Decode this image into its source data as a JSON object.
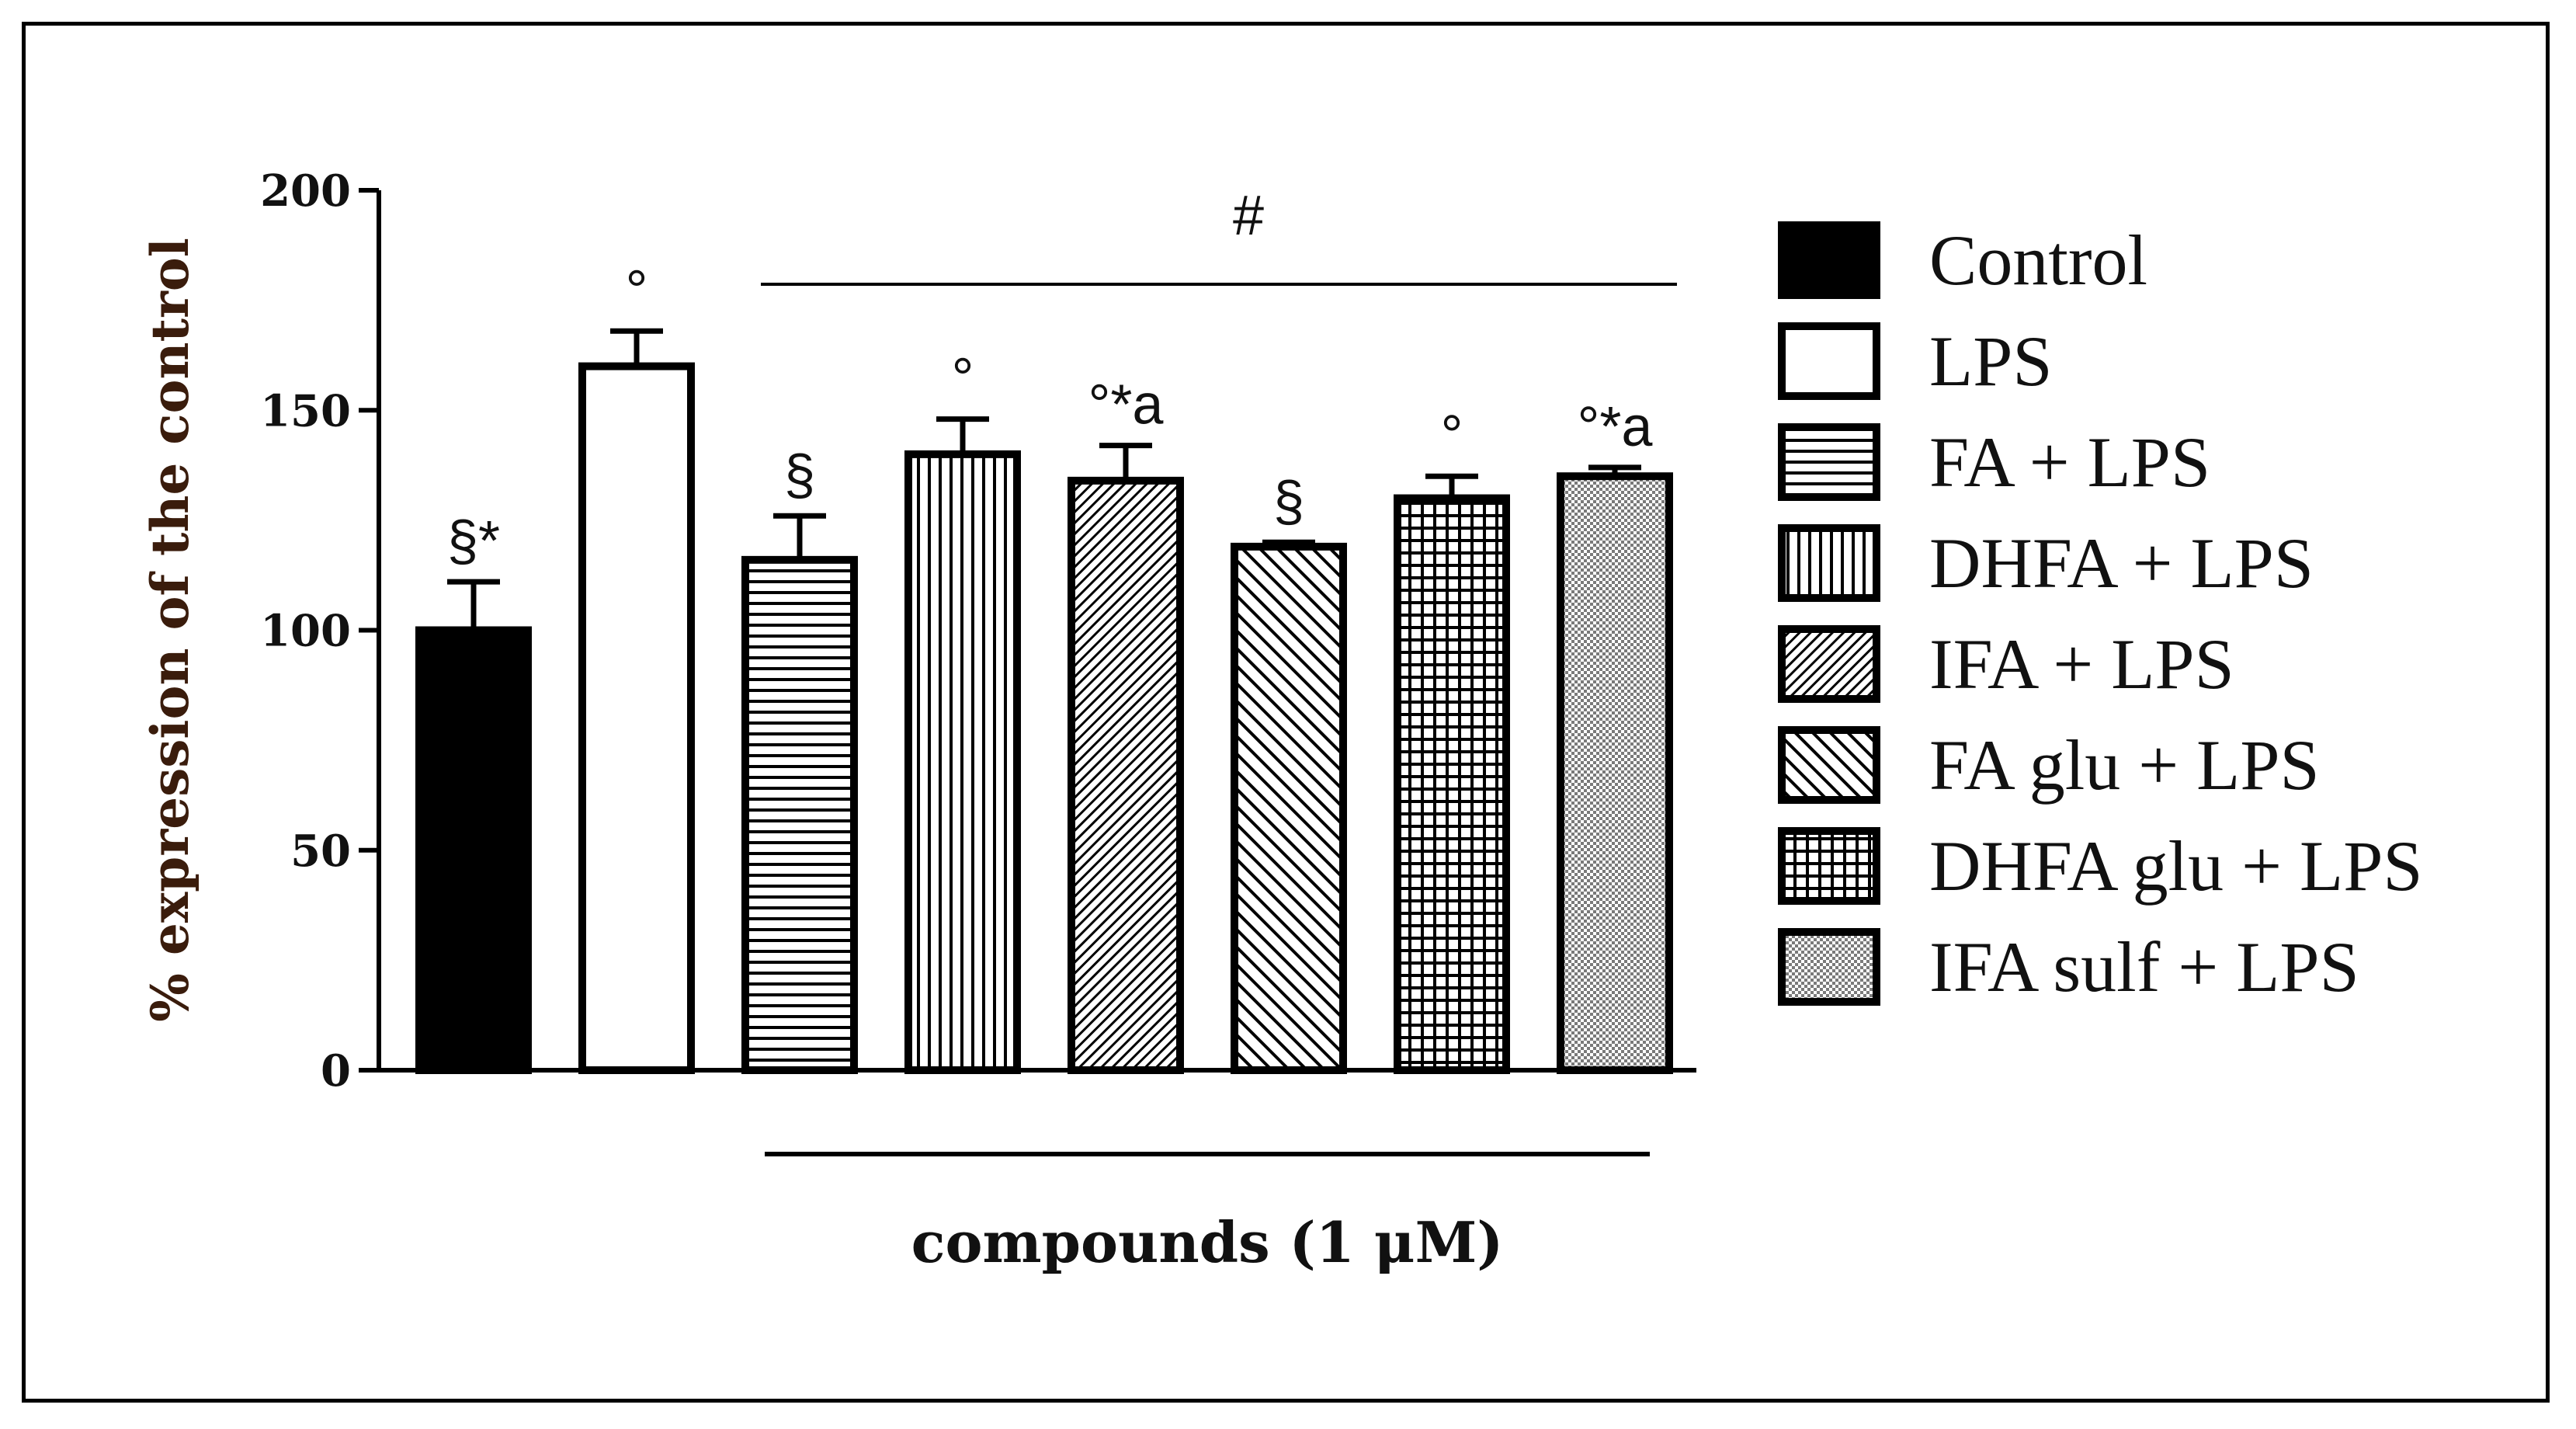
{
  "chart_data": {
    "type": "bar",
    "title": "",
    "xlabel": "compounds (1 μM)",
    "ylabel": "% expression of the control",
    "ylim": [
      0,
      200
    ],
    "yticks": [
      0,
      50,
      100,
      150,
      200
    ],
    "grid": false,
    "legend_position": "right",
    "group_bracket_label": "#",
    "categories": [
      "Control",
      "LPS",
      "FA + LPS",
      "DHFA + LPS",
      "IFA + LPS",
      "FA glu + LPS",
      "DHFA glu + LPS",
      "IFA sulf + LPS"
    ],
    "values": [
      100,
      160,
      116,
      140,
      134,
      119,
      130,
      135
    ],
    "errors": [
      11,
      8,
      10,
      8,
      8,
      1,
      5,
      2
    ],
    "patterns": [
      "solid",
      "none",
      "hlines",
      "vlines",
      "diag-fine",
      "diag-wide",
      "grid",
      "crosshatch"
    ],
    "annotations": [
      "§*",
      "°",
      "§",
      "°",
      "°*a",
      "§",
      "°",
      "°*a"
    ]
  }
}
